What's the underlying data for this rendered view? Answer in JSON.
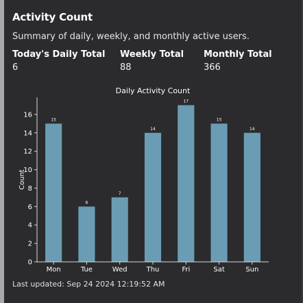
{
  "card": {
    "title": "Activity Count",
    "subtitle": "Summary of daily, weekly, and monthly active users."
  },
  "stats": {
    "daily_label": "Today's Daily Total",
    "daily_value": "6",
    "weekly_label": "Weekly Total",
    "weekly_value": "88",
    "monthly_label": "Monthly Total",
    "monthly_value": "366"
  },
  "footer": {
    "last_updated": "Last updated: Sep 24 2024 12:19:52 AM"
  },
  "colors": {
    "bar": "#6a9db3",
    "axis": "#d8d8d8",
    "background": "#2b2b2e"
  },
  "chart_data": {
    "type": "bar",
    "title": "Daily Activity Count",
    "xlabel": "",
    "ylabel": "Count",
    "categories": [
      "Mon",
      "Tue",
      "Wed",
      "Thu",
      "Fri",
      "Sat",
      "Sun"
    ],
    "values": [
      15,
      6,
      7,
      14,
      17,
      15,
      14
    ],
    "ylim": [
      0,
      17.85
    ],
    "yticks": [
      0,
      2,
      4,
      6,
      8,
      10,
      12,
      14,
      16
    ],
    "grid": false,
    "data_labels": true
  }
}
